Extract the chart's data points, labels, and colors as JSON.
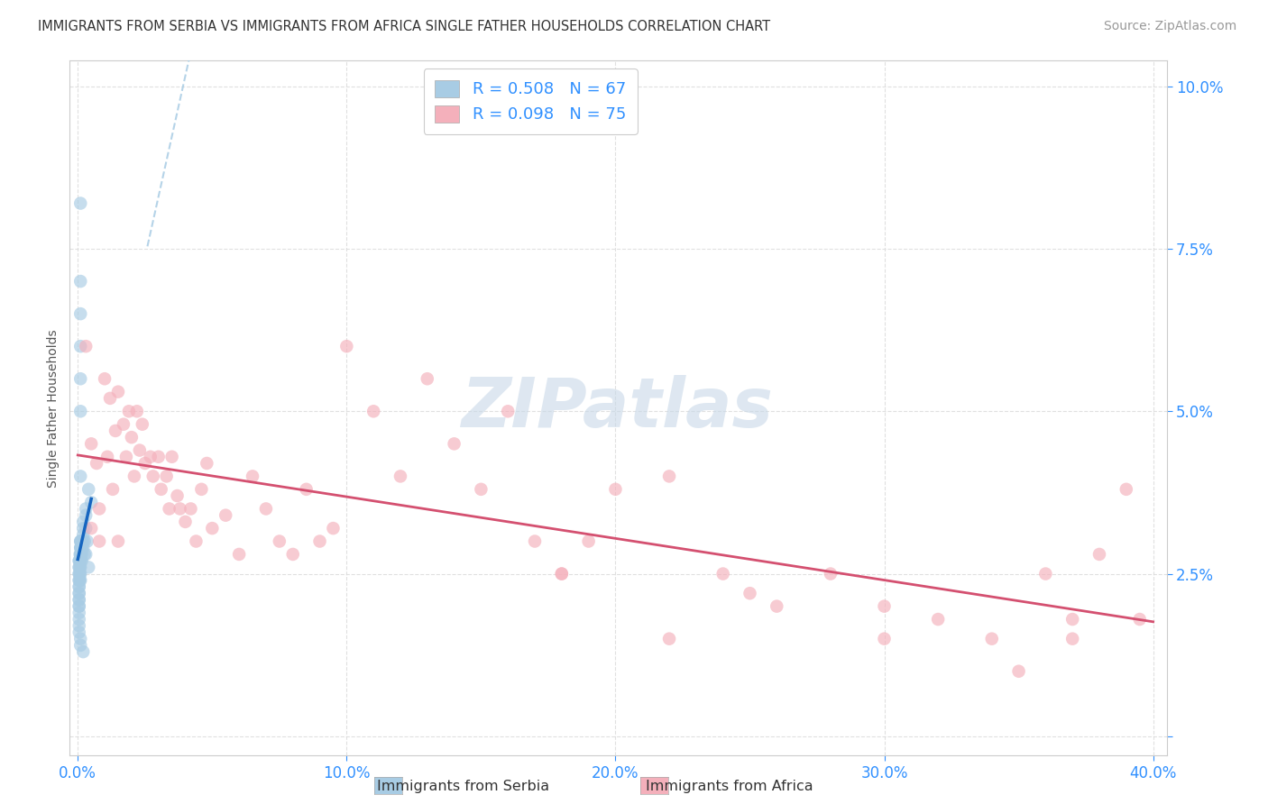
{
  "title": "IMMIGRANTS FROM SERBIA VS IMMIGRANTS FROM AFRICA SINGLE FATHER HOUSEHOLDS CORRELATION CHART",
  "source": "Source: ZipAtlas.com",
  "ylabel": "Single Father Households",
  "legend_serbia_r": "R = 0.508",
  "legend_serbia_n": "N = 67",
  "legend_africa_r": "R = 0.098",
  "legend_africa_n": "N = 75",
  "legend_label_serbia": "Immigrants from Serbia",
  "legend_label_africa": "Immigrants from Africa",
  "color_serbia_fill": "#a8cce4",
  "color_africa_fill": "#f4b0bb",
  "color_serbia_line": "#1565c0",
  "color_africa_line": "#d45070",
  "color_serbia_dash": "#a8cce4",
  "watermark_color": "#c8d8e8",
  "tick_label_color": "#3090ff",
  "serbia_x": [
    0.0005,
    0.0005,
    0.0005,
    0.0005,
    0.0005,
    0.0005,
    0.0005,
    0.0005,
    0.0005,
    0.0005,
    0.0005,
    0.0005,
    0.0005,
    0.0005,
    0.0005,
    0.0005,
    0.0005,
    0.0005,
    0.0005,
    0.0005,
    0.0008,
    0.0008,
    0.0008,
    0.0008,
    0.0008,
    0.001,
    0.001,
    0.001,
    0.001,
    0.001,
    0.001,
    0.001,
    0.001,
    0.001,
    0.001,
    0.001,
    0.001,
    0.001,
    0.0012,
    0.0012,
    0.0015,
    0.0015,
    0.0015,
    0.0015,
    0.002,
    0.002,
    0.002,
    0.002,
    0.002,
    0.002,
    0.0025,
    0.0025,
    0.003,
    0.003,
    0.003,
    0.003,
    0.0035,
    0.004,
    0.004,
    0.005,
    0.001,
    0.001,
    0.001,
    0.001,
    0.001,
    0.001,
    0.001
  ],
  "serbia_y": [
    0.027,
    0.027,
    0.026,
    0.026,
    0.025,
    0.025,
    0.024,
    0.024,
    0.023,
    0.023,
    0.022,
    0.022,
    0.021,
    0.021,
    0.02,
    0.02,
    0.019,
    0.018,
    0.017,
    0.016,
    0.028,
    0.027,
    0.026,
    0.025,
    0.024,
    0.03,
    0.03,
    0.029,
    0.029,
    0.028,
    0.028,
    0.027,
    0.027,
    0.026,
    0.025,
    0.024,
    0.015,
    0.014,
    0.03,
    0.029,
    0.03,
    0.029,
    0.028,
    0.027,
    0.033,
    0.032,
    0.031,
    0.03,
    0.029,
    0.013,
    0.03,
    0.028,
    0.035,
    0.034,
    0.032,
    0.028,
    0.03,
    0.038,
    0.026,
    0.036,
    0.05,
    0.055,
    0.06,
    0.065,
    0.07,
    0.082,
    0.04
  ],
  "africa_x": [
    0.003,
    0.005,
    0.005,
    0.007,
    0.008,
    0.008,
    0.01,
    0.011,
    0.012,
    0.013,
    0.014,
    0.015,
    0.015,
    0.017,
    0.018,
    0.019,
    0.02,
    0.021,
    0.022,
    0.023,
    0.024,
    0.025,
    0.027,
    0.028,
    0.03,
    0.031,
    0.033,
    0.034,
    0.035,
    0.037,
    0.038,
    0.04,
    0.042,
    0.044,
    0.046,
    0.048,
    0.05,
    0.055,
    0.06,
    0.065,
    0.07,
    0.075,
    0.08,
    0.085,
    0.09,
    0.095,
    0.1,
    0.11,
    0.12,
    0.13,
    0.14,
    0.15,
    0.16,
    0.17,
    0.18,
    0.19,
    0.2,
    0.22,
    0.24,
    0.26,
    0.28,
    0.3,
    0.32,
    0.34,
    0.36,
    0.37,
    0.38,
    0.39,
    0.395,
    0.37,
    0.35,
    0.3,
    0.25,
    0.22,
    0.18
  ],
  "africa_y": [
    0.06,
    0.045,
    0.032,
    0.042,
    0.035,
    0.03,
    0.055,
    0.043,
    0.052,
    0.038,
    0.047,
    0.053,
    0.03,
    0.048,
    0.043,
    0.05,
    0.046,
    0.04,
    0.05,
    0.044,
    0.048,
    0.042,
    0.043,
    0.04,
    0.043,
    0.038,
    0.04,
    0.035,
    0.043,
    0.037,
    0.035,
    0.033,
    0.035,
    0.03,
    0.038,
    0.042,
    0.032,
    0.034,
    0.028,
    0.04,
    0.035,
    0.03,
    0.028,
    0.038,
    0.03,
    0.032,
    0.06,
    0.05,
    0.04,
    0.055,
    0.045,
    0.038,
    0.05,
    0.03,
    0.025,
    0.03,
    0.038,
    0.04,
    0.025,
    0.02,
    0.025,
    0.02,
    0.018,
    0.015,
    0.025,
    0.018,
    0.028,
    0.038,
    0.018,
    0.015,
    0.01,
    0.015,
    0.022,
    0.015,
    0.025
  ],
  "xlim_min": -0.003,
  "xlim_max": 0.405,
  "ylim_min": -0.003,
  "ylim_max": 0.104,
  "xtick_vals": [
    0.0,
    0.1,
    0.2,
    0.3,
    0.4
  ],
  "ytick_vals": [
    0.0,
    0.025,
    0.05,
    0.075,
    0.1
  ],
  "background_color": "#ffffff",
  "grid_color": "#dddddd"
}
